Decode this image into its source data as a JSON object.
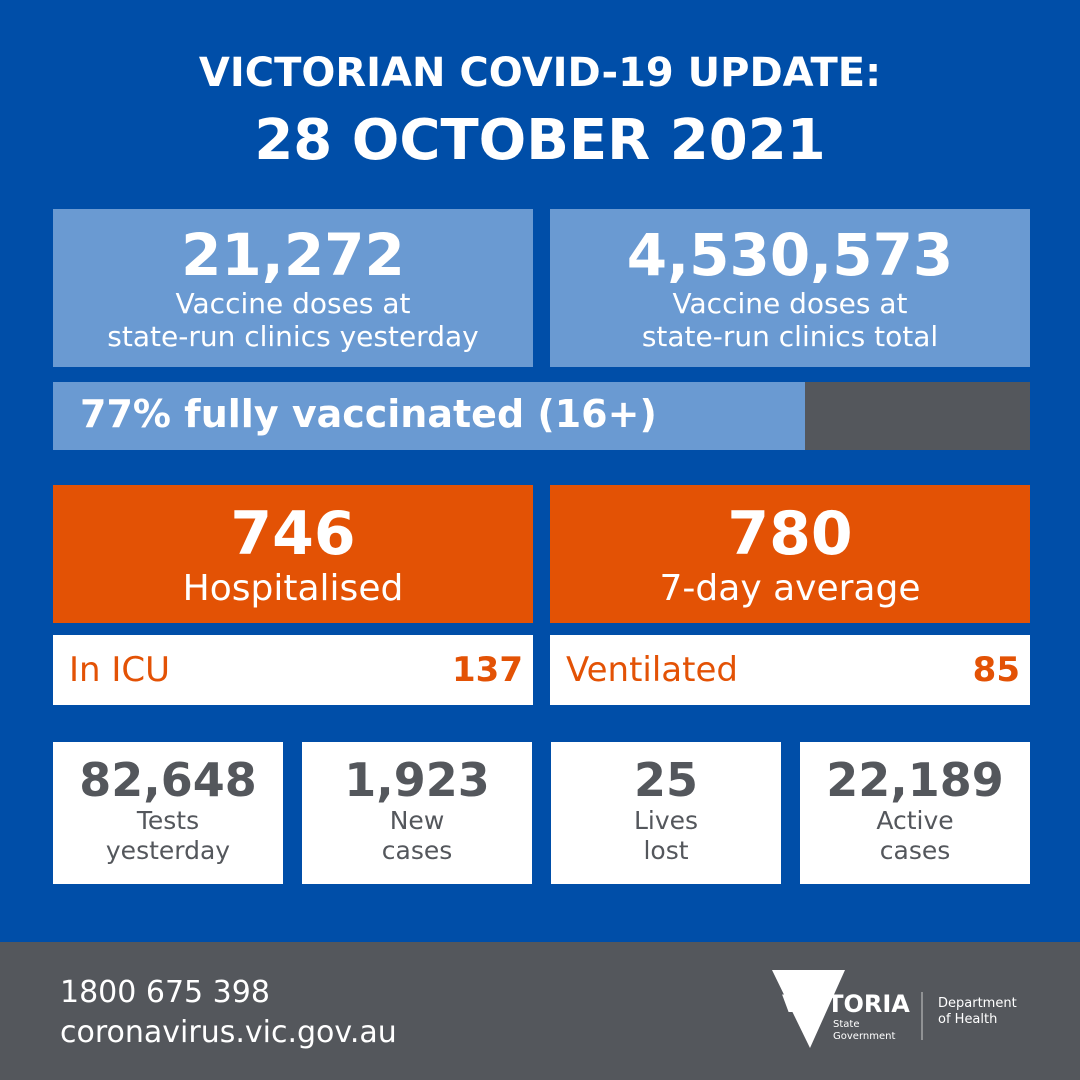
{
  "header": {
    "line1": "VICTORIAN COVID-19 UPDATE:",
    "line2": "28 OCTOBER 2021"
  },
  "vaccine": {
    "yesterday": {
      "value": "21,272",
      "label1": "Vaccine doses at",
      "label2": "state-run clinics yesterday"
    },
    "total": {
      "value": "4,530,573",
      "label1": "Vaccine doses at",
      "label2": "state-run clinics total"
    },
    "fully_vaccinated": {
      "text": "77% fully vaccinated (16+)",
      "percent": 77
    }
  },
  "hospital": {
    "hospitalised": {
      "value": "746",
      "label": "Hospitalised"
    },
    "average": {
      "value": "780",
      "label": "7-day average"
    },
    "icu": {
      "label": "In ICU",
      "value": "137"
    },
    "ventilated": {
      "label": "Ventilated",
      "value": "85"
    }
  },
  "stats": [
    {
      "value": "82,648",
      "label1": "Tests",
      "label2": "yesterday"
    },
    {
      "value": "1,923",
      "label1": "New",
      "label2": "cases"
    },
    {
      "value": "25",
      "label1": "Lives",
      "label2": "lost"
    },
    {
      "value": "22,189",
      "label1": "Active",
      "label2": "cases"
    }
  ],
  "footer": {
    "phone": "1800 675 398",
    "website": "coronavirus.vic.gov.au",
    "logo": {
      "name": "VICTORIA",
      "sub1": "State",
      "sub2": "Government",
      "dept1": "Department",
      "dept2": "of Health"
    }
  },
  "colors": {
    "background": "#004ea8",
    "light_blue": "#6a9ad2",
    "orange": "#e35205",
    "grey": "#54575c"
  }
}
